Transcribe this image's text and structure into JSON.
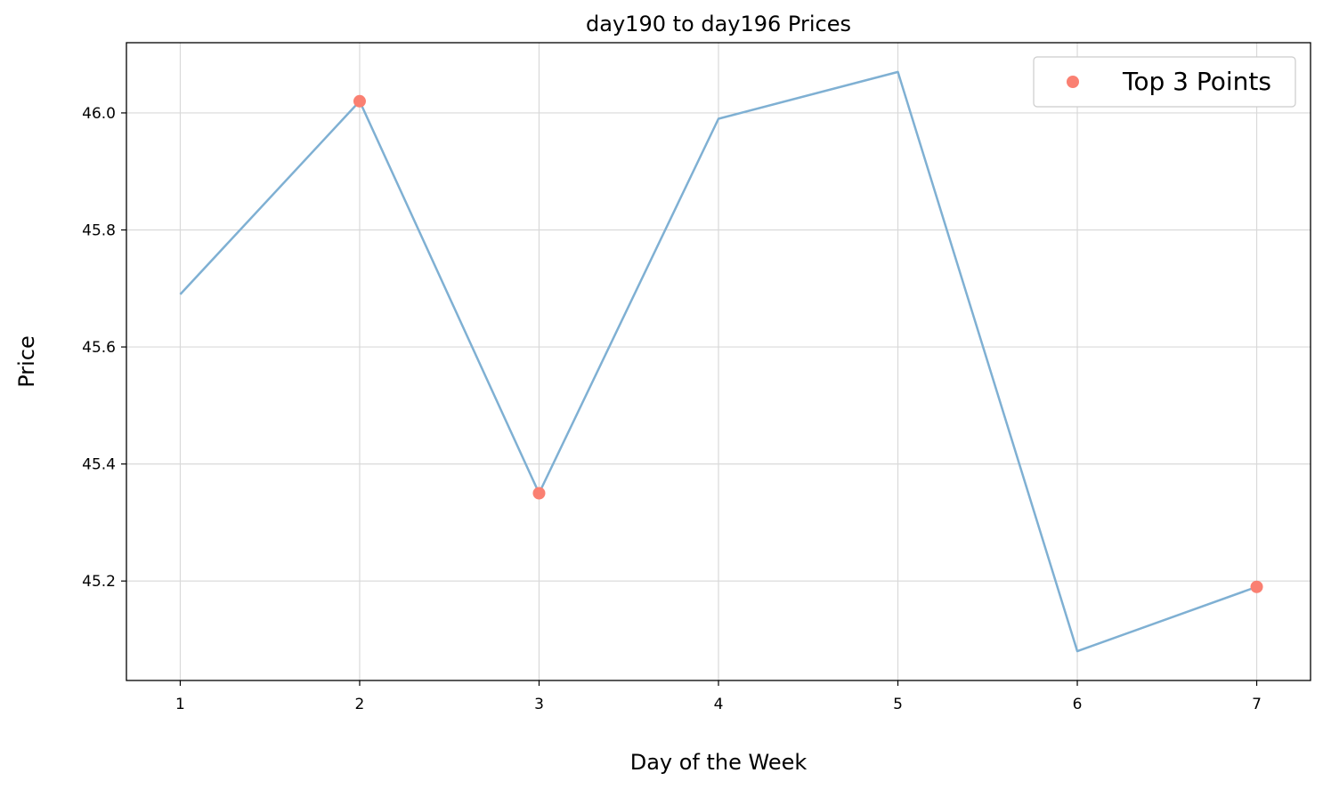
{
  "chart_data": {
    "type": "line",
    "title": "day190 to day196 Prices",
    "xlabel": "Day of the Week",
    "ylabel": "Price",
    "x": [
      1,
      2,
      3,
      4,
      5,
      6,
      7
    ],
    "x_ticks": [
      "1",
      "2",
      "3",
      "4",
      "5",
      "6",
      "7"
    ],
    "y_ticks": [
      "45.2",
      "45.4",
      "45.6",
      "45.8",
      "46.0"
    ],
    "xlim": [
      0.7,
      7.3
    ],
    "ylim": [
      45.03,
      46.12
    ],
    "grid": true,
    "legend_position": "top-right",
    "series": [
      {
        "kind": "line",
        "color": "#7fb0d3",
        "x": [
          1,
          2,
          3,
          4,
          5,
          6,
          7
        ],
        "values": [
          45.69,
          46.02,
          45.35,
          45.99,
          46.07,
          45.08,
          45.19
        ]
      },
      {
        "kind": "scatter",
        "name": "Top 3 Points",
        "color": "#fa8072",
        "x": [
          2,
          3,
          7
        ],
        "values": [
          46.02,
          45.35,
          45.19
        ]
      }
    ]
  }
}
